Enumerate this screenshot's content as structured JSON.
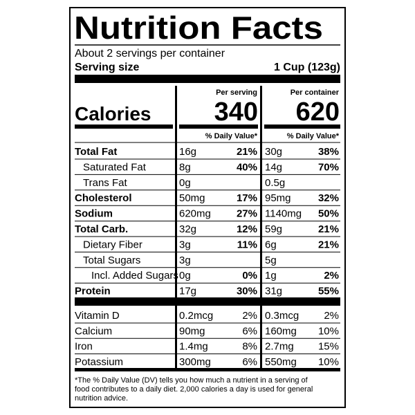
{
  "header": {
    "title": "Nutrition Facts",
    "servings": "About 2 servings per container",
    "serving_size_label": "Serving size",
    "serving_size_value": "1 Cup (123g)"
  },
  "columns": {
    "per_serving": "Per serving",
    "per_container": "Per container",
    "daily_value": "% Daily Value*"
  },
  "calories": {
    "label": "Calories",
    "per_serving": "340",
    "per_container": "620"
  },
  "nutrients": [
    {
      "label": "Total Fat",
      "bold": true,
      "indent": 0,
      "serving_amount": "16g",
      "serving_dv": "21%",
      "container_amount": "30g",
      "container_dv": "38%"
    },
    {
      "label": "Saturated Fat",
      "bold": false,
      "indent": 1,
      "serving_amount": "8g",
      "serving_dv": "40%",
      "container_amount": "14g",
      "container_dv": "70%"
    },
    {
      "label": "Trans Fat",
      "bold": false,
      "indent": 1,
      "serving_amount": "0g",
      "serving_dv": null,
      "container_amount": "0.5g",
      "container_dv": null
    },
    {
      "label": "Cholesterol",
      "bold": true,
      "indent": 0,
      "serving_amount": "50mg",
      "serving_dv": "17%",
      "container_amount": "95mg",
      "container_dv": "32%"
    },
    {
      "label": "Sodium",
      "bold": true,
      "indent": 0,
      "serving_amount": "620mg",
      "serving_dv": "27%",
      "container_amount": "1140mg",
      "container_dv": "50%"
    },
    {
      "label": "Total Carb.",
      "bold": true,
      "indent": 0,
      "serving_amount": "32g",
      "serving_dv": "12%",
      "container_amount": "59g",
      "container_dv": "21%"
    },
    {
      "label": "Dietary Fiber",
      "bold": false,
      "indent": 1,
      "serving_amount": "3g",
      "serving_dv": "11%",
      "container_amount": "6g",
      "container_dv": "21%"
    },
    {
      "label": "Total Sugars",
      "bold": false,
      "indent": 1,
      "serving_amount": "3g",
      "serving_dv": null,
      "container_amount": "5g",
      "container_dv": null
    },
    {
      "label": "Incl. Added Sugars",
      "bold": false,
      "indent": 2,
      "serving_amount": "0g",
      "serving_dv": "0%",
      "container_amount": "1g",
      "container_dv": "2%"
    },
    {
      "label": "Protein",
      "bold": true,
      "indent": 0,
      "serving_amount": "17g",
      "serving_dv": "30%",
      "container_amount": "31g",
      "container_dv": "55%"
    }
  ],
  "vitamins": [
    {
      "label": "Vitamin D",
      "serving_amount": "0.2mcg",
      "serving_dv": "2%",
      "container_amount": "0.3mcg",
      "container_dv": "2%"
    },
    {
      "label": "Calcium",
      "serving_amount": "90mg",
      "serving_dv": "6%",
      "container_amount": "160mg",
      "container_dv": "10%"
    },
    {
      "label": "Iron",
      "serving_amount": "1.4mg",
      "serving_dv": "8%",
      "container_amount": "2.7mg",
      "container_dv": "15%"
    },
    {
      "label": "Potassium",
      "serving_amount": "300mg",
      "serving_dv": "6%",
      "container_amount": "550mg",
      "container_dv": "10%"
    }
  ],
  "footnote": [
    "*The % Daily Value (DV) tells you how much a nutrient in a serving of",
    "food contributes to a daily diet. 2,000 calories a day is used for general",
    "nutrition advice."
  ]
}
